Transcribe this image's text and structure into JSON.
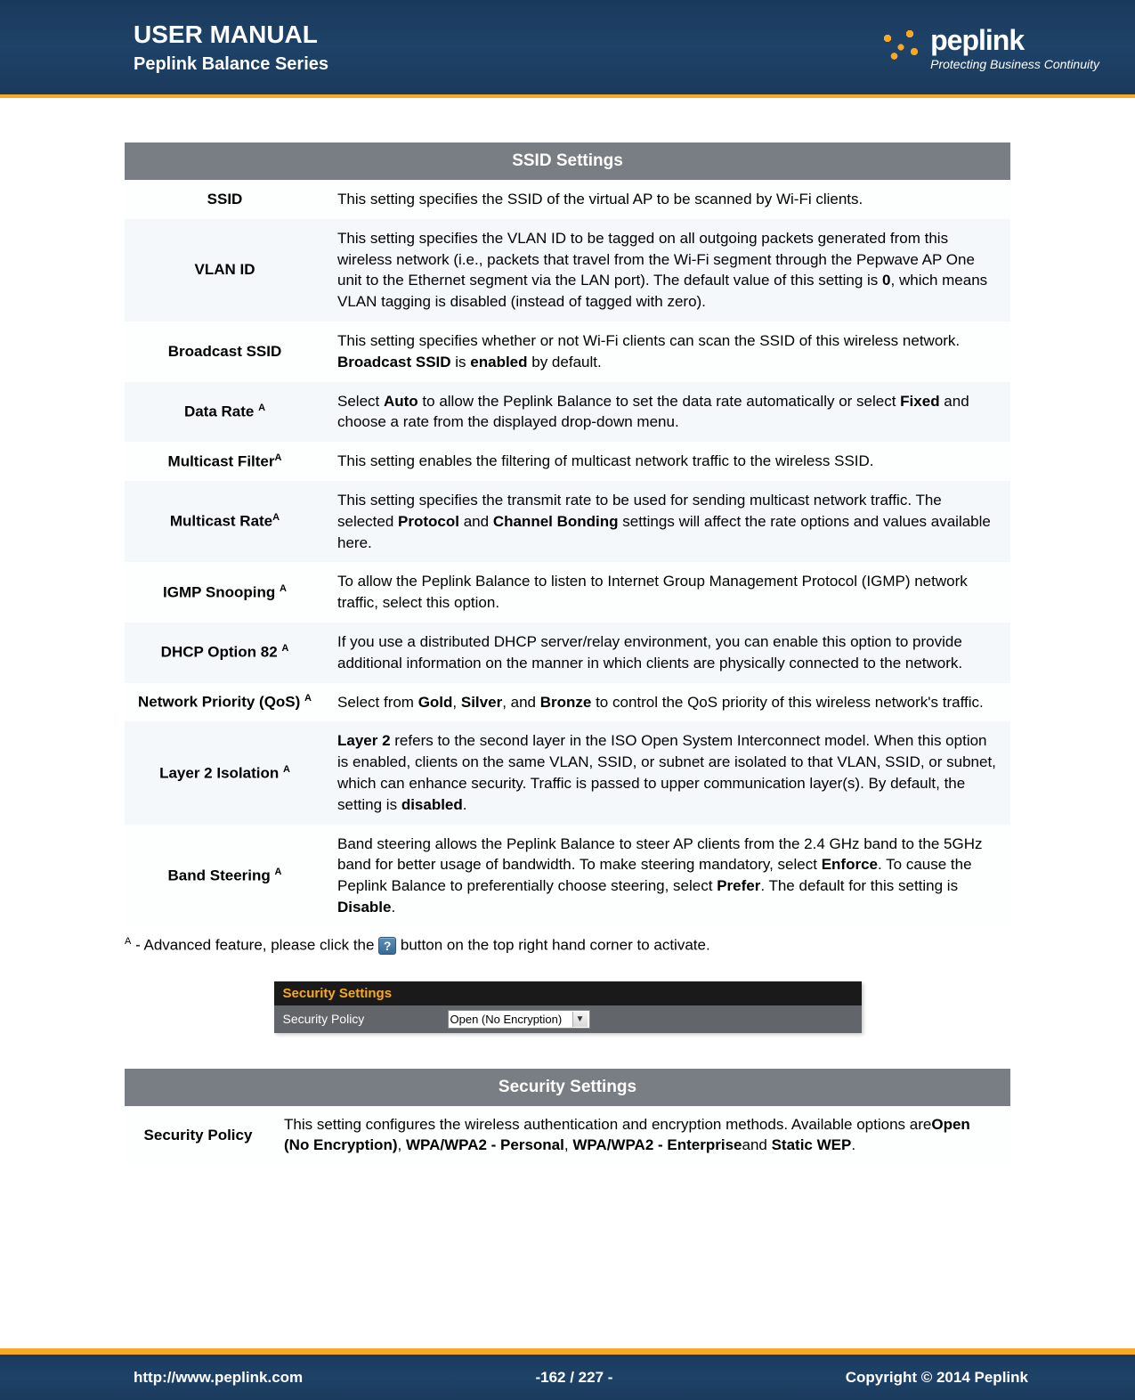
{
  "header": {
    "title": "USER MANUAL",
    "subtitle": "Peplink Balance Series",
    "brand": "peplink",
    "tagline": "Protecting Business Continuity"
  },
  "colors": {
    "header_bg": "#1e4268",
    "accent": "#f9a825",
    "table_header_bg": "#797d84",
    "row_alt_bg": "#f4f8fb"
  },
  "ssid_table": {
    "title": "SSID Settings",
    "rows": [
      {
        "label_html": "SSID",
        "desc_html": "This setting specifies the SSID of the virtual AP to be scanned by Wi-Fi clients."
      },
      {
        "label_html": "VLAN ID",
        "desc_html": "This setting specifies the VLAN ID to be tagged on all outgoing packets generated from this wireless network (i.e., packets that travel from the Wi-Fi segment through the Pepwave AP One unit to the Ethernet segment via the LAN port). The default value of this setting is <b>0</b>, which means VLAN tagging is disabled (instead of tagged with zero)."
      },
      {
        "label_html": "Broadcast SSID",
        "desc_html": "This setting specifies whether or not Wi-Fi clients can scan the SSID of this wireless network. <b>Broadcast SSID</b> is <b>enabled</b> by default."
      },
      {
        "label_html": "Data Rate <span class=\"sup\">A</span>",
        "desc_html": "Select <b>Auto</b> to allow the Peplink Balance to set the data rate automatically or select <b>Fixed</b> and choose a rate from the displayed drop-down menu."
      },
      {
        "label_html": "Multicast Filter<span class=\"sup\">A</span>",
        "desc_html": "This setting enables the filtering of multicast network traffic to the wireless SSID."
      },
      {
        "label_html": "Multicast Rate<span class=\"sup\">A</span>",
        "desc_html": "This setting specifies the transmit rate to be used for sending multicast network traffic. The selected <b>Protocol</b> and <b>Channel Bonding</b> settings will affect the rate options and values available here."
      },
      {
        "label_html": "IGMP Snooping <span class=\"sup\">A</span>",
        "desc_html": "To allow the Peplink Balance to listen to Internet Group Management Protocol (IGMP) network traffic, select this option."
      },
      {
        "label_html": "DHCP Option 82 <span class=\"sup\">A</span>",
        "desc_html": "If you use a distributed DHCP server/relay environment, you can enable this option to provide additional information on the manner in which clients are physically connected to the network."
      },
      {
        "label_html": "Network Priority (QoS) <span class=\"sup\">A</span>",
        "desc_html": "Select from <b>Gold</b>, <b>Silver</b>, and <b>Bronze</b> to control the QoS priority of this wireless network's traffic."
      },
      {
        "label_html": "Layer 2 Isolation <span class=\"sup\">A</span>",
        "desc_html": "<b>Layer 2</b> refers to the second layer in the ISO Open System Interconnect model. When this option is enabled, clients on the same VLAN, SSID, or subnet are isolated to that VLAN, SSID, or subnet, which can enhance security. Traffic is passed to upper communication layer(s). By default, the setting is <b>disabled</b>."
      },
      {
        "label_html": "Band Steering <span class=\"sup\">A</span>",
        "desc_html": "Band steering allows the Peplink Balance to steer AP clients from the 2.4 GHz band to the 5GHz band for better usage of bandwidth. To make steering mandatory, select <b>Enforce</b>. To cause the Peplink Balance to preferentially choose steering, select <b>Prefer</b>. The default for this setting is <b>Disable</b>."
      }
    ]
  },
  "footnote_prefix": "A",
  "footnote_text_before": " - Advanced feature, please click the ",
  "footnote_text_after": " button on the top right hand corner to activate.",
  "help_glyph": "?",
  "security_screenshot": {
    "title": "Security Settings",
    "row_label": "Security Policy",
    "dropdown_value": "Open (No Encryption)"
  },
  "security_table": {
    "title": "Security Settings",
    "row_label": "Security Policy",
    "desc_html": "This setting configures the wireless authentication and encryption methods. Available options are<b>Open (No Encryption)</b>, <b>WPA/WPA2 - Personal</b>, <b>WPA/WPA2 - Enterprise</b>and <b>Static WEP</b>."
  },
  "footer": {
    "url": "http://www.peplink.com",
    "page": "-162 / 227 -",
    "copyright": "Copyright © 2014 Peplink"
  }
}
